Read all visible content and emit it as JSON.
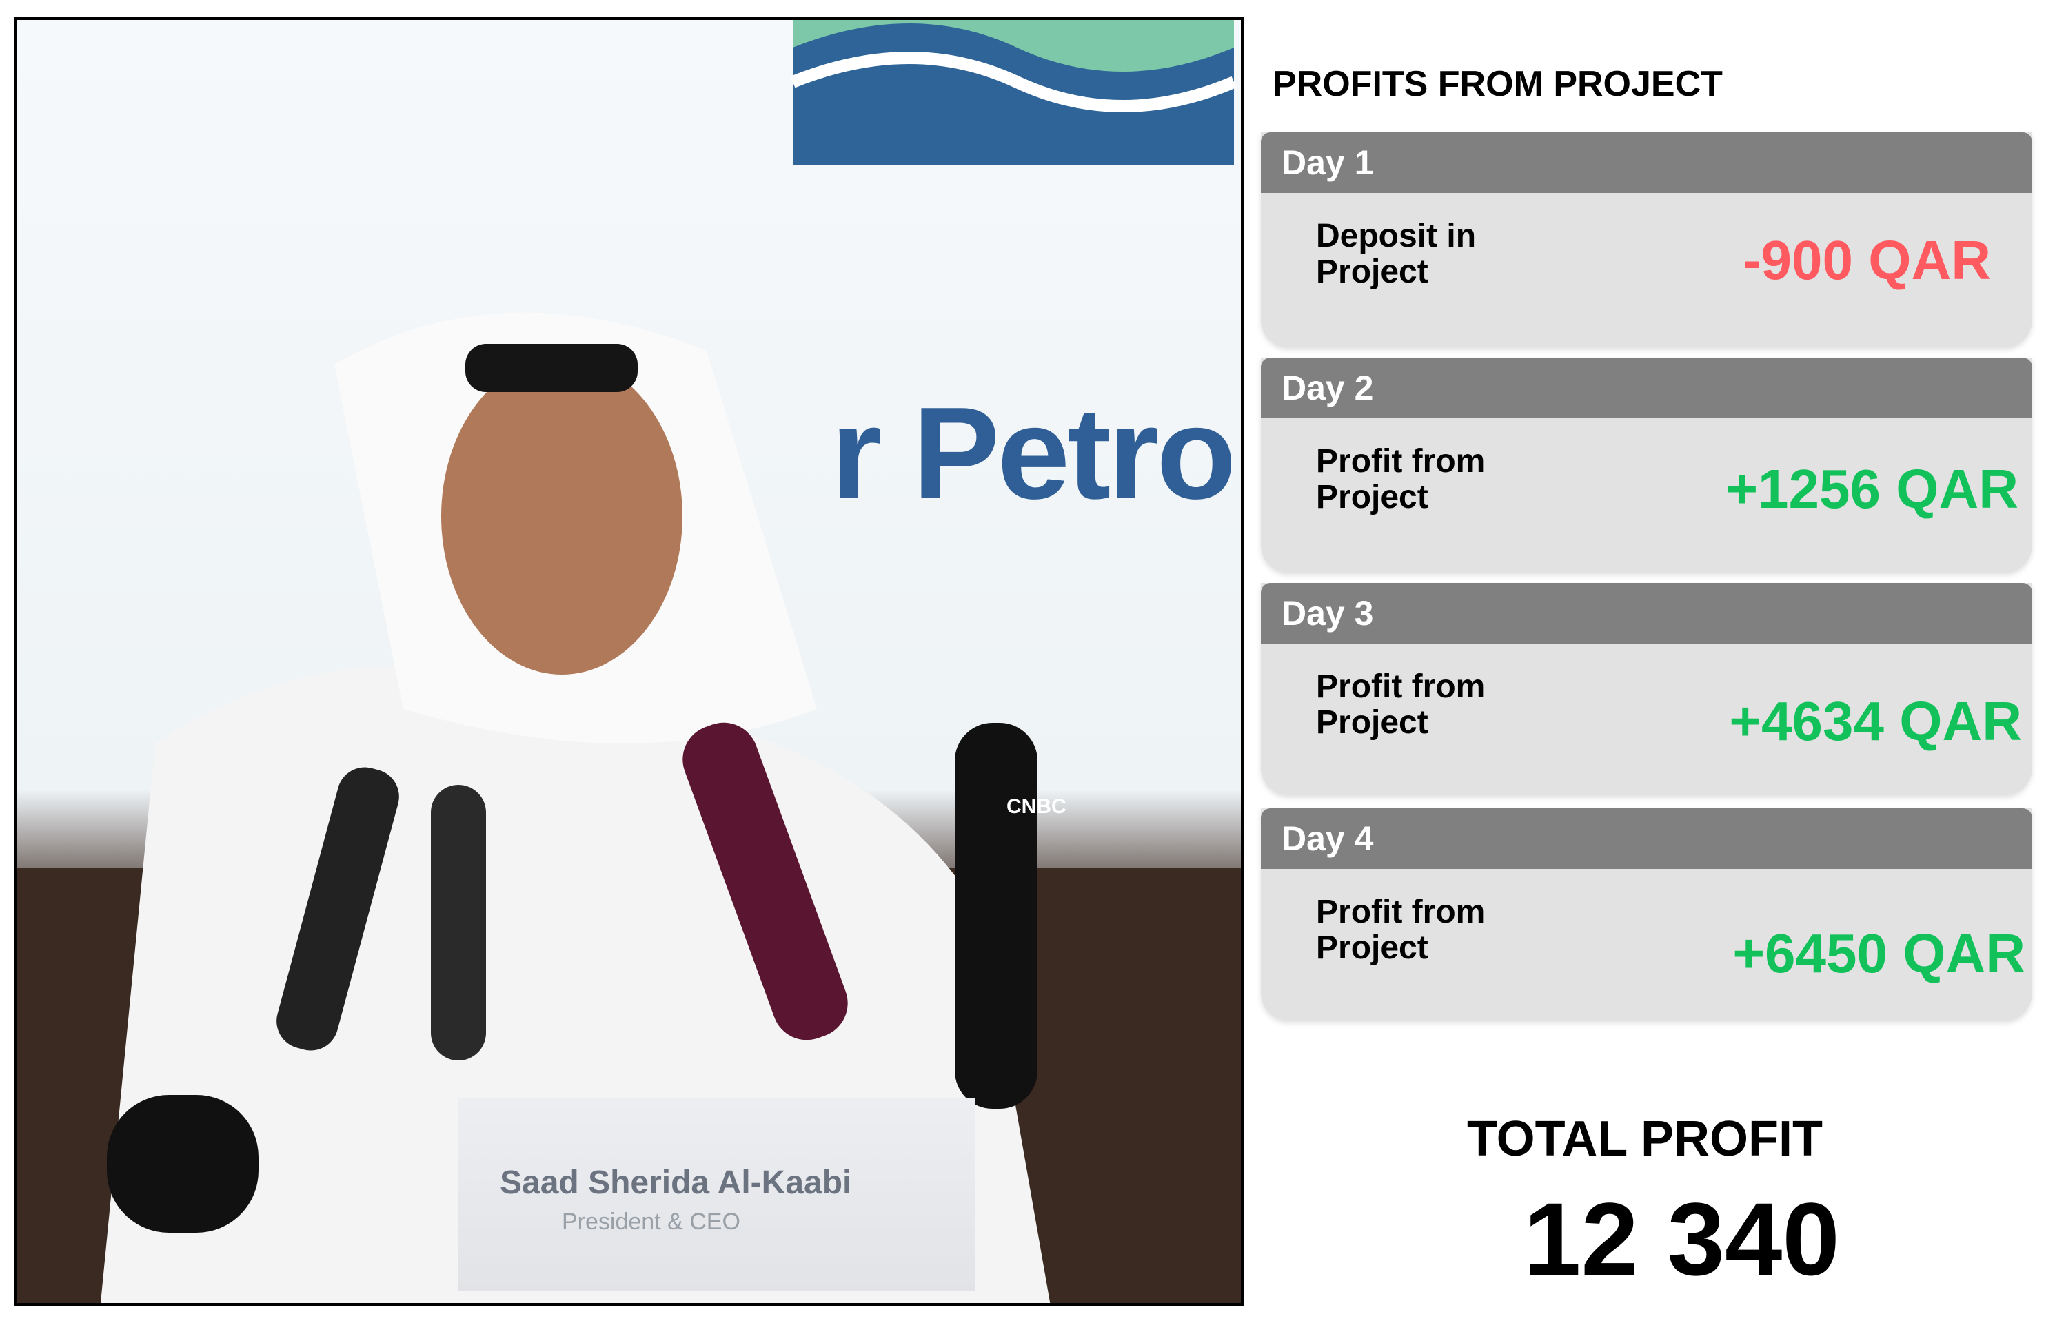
{
  "photo": {
    "logo_text": "r Petrol",
    "nameplate_name": "Saad Sherida Al-Kaabi",
    "nameplate_title": "President & CEO",
    "mic_brand": "CNBC"
  },
  "panel": {
    "title": "PROFITS FROM PROJECT",
    "days": [
      {
        "label": "Day 1",
        "description": "Deposit in\nProject",
        "amount": "-900 QAR",
        "color": "#ff5a5f"
      },
      {
        "label": "Day 2",
        "description": "Profit from\nProject",
        "amount": "+1256 QAR",
        "color": "#12c15a"
      },
      {
        "label": "Day 3",
        "description": "Profit from\nProject",
        "amount": "+4634 QAR",
        "color": "#12c15a"
      },
      {
        "label": "Day 4",
        "description": "Profit from\nProject",
        "amount": "+6450 QAR",
        "color": "#12c15a"
      }
    ],
    "total_label": "TOTAL PROFIT",
    "total_value": "12 340"
  }
}
